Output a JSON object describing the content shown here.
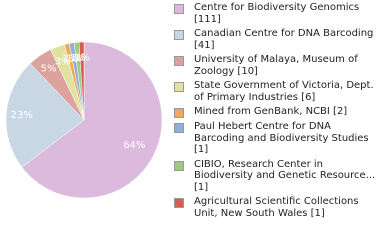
{
  "chart_data": {
    "type": "pie",
    "series": [
      {
        "name": "Centre for Biodiversity Genomics [111]",
        "color": "#dbbadd"
      },
      {
        "name": "Canadian Centre for DNA Barcoding [41]",
        "color": "#c9d6e3"
      },
      {
        "name": "University of Malaya, Museum of Zoology [10]",
        "color": "#dba39b"
      },
      {
        "name": "State Government of Victoria, Dept. of Primary Industries [6]",
        "color": "#e0e3a0"
      },
      {
        "name": "Mined from GenBank, NCBI [2]",
        "color": "#f0a860"
      },
      {
        "name": "Paul Hebert Centre for DNA Barcoding and Biodiversity Studies [1]",
        "color": "#8fb0d6"
      },
      {
        "name": "CIBIO, Research Center in Biodiversity and Genetic Resource... [1]",
        "color": "#a2c77f"
      },
      {
        "name": "Agricultural Scientific Collections Unit, New South Wales [1]",
        "color": "#d45f4f"
      }
    ],
    "values": [
      64,
      23,
      5,
      3,
      1,
      1,
      1,
      1
    ],
    "value_labels": [
      "64%",
      "23%",
      "5%",
      "3%",
      "1%",
      "1%",
      "1%",
      "1%"
    ]
  }
}
